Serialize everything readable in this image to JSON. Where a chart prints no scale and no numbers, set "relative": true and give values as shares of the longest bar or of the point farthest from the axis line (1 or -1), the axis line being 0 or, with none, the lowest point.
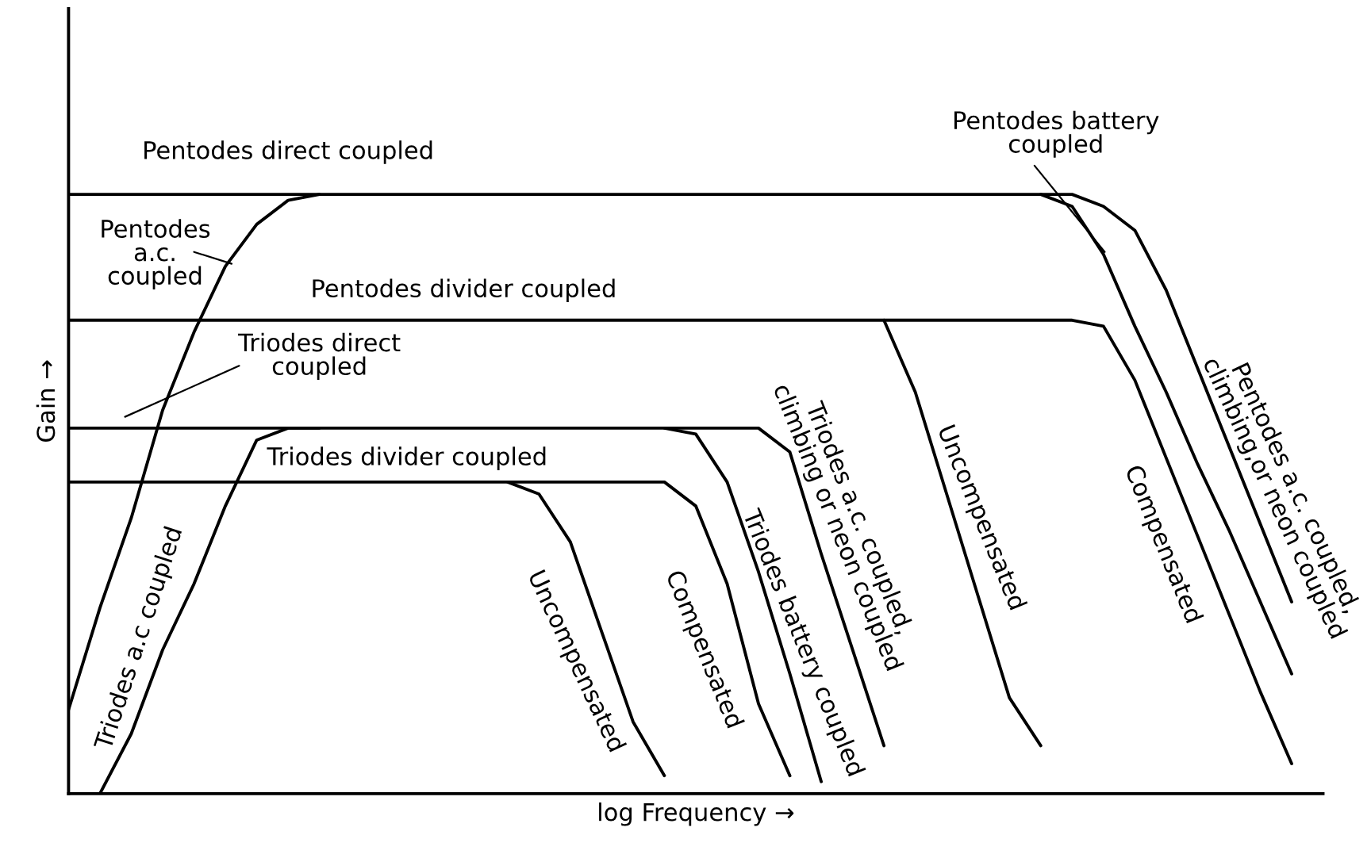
{
  "chart_data": {
    "type": "line",
    "relative": true,
    "xlabel": "log Frequency →",
    "ylabel": "Gain →",
    "marker": "none",
    "line_style": "solid",
    "categories": [
      null,
      null,
      null,
      null,
      null,
      null,
      null,
      null,
      null,
      null,
      null,
      null,
      null,
      null,
      null,
      null,
      null,
      null,
      null,
      null,
      null,
      null,
      null,
      null,
      null,
      null,
      null,
      null,
      null,
      null,
      null,
      null,
      null,
      null,
      null,
      null,
      null,
      null,
      null,
      null
    ],
    "series": [
      {
        "color": "#000000",
        "values": [
          1,
          1,
          1,
          1,
          1,
          1,
          1,
          1,
          1,
          1,
          1,
          1,
          1,
          1,
          1,
          1,
          1,
          1,
          1,
          1,
          1,
          1,
          1,
          1,
          1,
          1,
          1,
          1,
          1,
          1,
          1,
          1,
          0.98,
          0.9,
          0.78,
          0.67,
          0.55,
          0.44,
          0.32,
          0.2
        ]
      },
      {
        "color": "#000000",
        "values": [
          null,
          null,
          null,
          null,
          null,
          null,
          null,
          null,
          null,
          null,
          null,
          null,
          null,
          null,
          null,
          null,
          null,
          null,
          null,
          null,
          null,
          null,
          null,
          null,
          null,
          null,
          null,
          null,
          null,
          null,
          null,
          1,
          1,
          0.98,
          0.94,
          0.84,
          0.71,
          0.58,
          0.45,
          0.32
        ]
      },
      {
        "color": "#000000",
        "values": [
          0.14,
          0.31,
          0.46,
          0.64,
          0.77,
          0.88,
          0.95,
          0.99,
          1,
          null,
          null,
          null,
          null,
          null,
          null,
          null,
          null,
          null,
          null,
          null,
          null,
          null,
          null,
          null,
          null,
          null,
          null,
          null,
          null,
          null,
          null,
          null,
          null,
          null,
          null,
          null,
          null,
          null,
          null,
          null
        ]
      },
      {
        "color": "#000000",
        "values": [
          0.79,
          0.79,
          0.79,
          0.79,
          0.79,
          0.79,
          0.79,
          0.79,
          0.79,
          0.79,
          0.79,
          0.79,
          0.79,
          0.79,
          0.79,
          0.79,
          0.79,
          0.79,
          0.79,
          0.79,
          0.79,
          0.79,
          0.79,
          0.79,
          0.79,
          0.79,
          0.79,
          0.67,
          0.5,
          0.33,
          0.16,
          0.08,
          null,
          null,
          null,
          null,
          null,
          null,
          null,
          null
        ]
      },
      {
        "color": "#000000",
        "values": [
          null,
          null,
          null,
          null,
          null,
          null,
          null,
          null,
          null,
          null,
          null,
          null,
          null,
          null,
          null,
          null,
          null,
          null,
          null,
          null,
          null,
          null,
          null,
          null,
          null,
          null,
          0.79,
          0.79,
          0.79,
          0.79,
          0.79,
          0.79,
          0.79,
          0.78,
          0.69,
          0.56,
          0.43,
          0.3,
          0.17,
          0.05
        ]
      },
      {
        "color": "#000000",
        "values": [
          0.61,
          0.61,
          0.61,
          0.61,
          0.61,
          0.61,
          0.61,
          0.61,
          0.61,
          0.61,
          0.61,
          0.61,
          0.61,
          0.61,
          0.61,
          0.61,
          0.61,
          0.61,
          0.61,
          0.61,
          0.6,
          0.52,
          0.37,
          0.2,
          0.02,
          null,
          null,
          null,
          null,
          null,
          null,
          null,
          null,
          null,
          null,
          null,
          null,
          null,
          null,
          null
        ]
      },
      {
        "color": "#000000",
        "values": [
          null,
          null,
          null,
          null,
          null,
          null,
          null,
          null,
          null,
          null,
          null,
          null,
          null,
          null,
          null,
          null,
          null,
          null,
          null,
          0.61,
          0.61,
          0.61,
          0.61,
          0.57,
          0.4,
          0.24,
          0.08,
          null,
          null,
          null,
          null,
          null,
          null,
          null,
          null,
          null,
          null,
          null,
          null,
          null
        ]
      },
      {
        "color": "#000000",
        "values": [
          null,
          0,
          0.1,
          0.24,
          0.35,
          0.48,
          0.59,
          0.61,
          0.61,
          null,
          null,
          null,
          null,
          null,
          null,
          null,
          null,
          null,
          null,
          null,
          null,
          null,
          null,
          null,
          null,
          null,
          null,
          null,
          null,
          null,
          null,
          null,
          null,
          null,
          null,
          null,
          null,
          null,
          null,
          null
        ]
      },
      {
        "color": "#000000",
        "values": [
          0.52,
          0.52,
          0.52,
          0.52,
          0.52,
          0.52,
          0.52,
          0.52,
          0.52,
          0.52,
          0.52,
          0.52,
          0.52,
          0.52,
          0.52,
          0.5,
          0.42,
          0.27,
          0.12,
          0.03,
          null,
          null,
          null,
          null,
          null,
          null,
          null,
          null,
          null,
          null,
          null,
          null,
          null,
          null,
          null,
          null,
          null,
          null,
          null,
          null
        ]
      },
      {
        "color": "#000000",
        "values": [
          null,
          null,
          null,
          null,
          null,
          null,
          null,
          null,
          null,
          null,
          null,
          null,
          null,
          null,
          0.52,
          0.52,
          0.52,
          0.52,
          0.52,
          0.52,
          0.48,
          0.35,
          0.15,
          0.03,
          null,
          null,
          null,
          null,
          null,
          null,
          null,
          null,
          null,
          null,
          null,
          null,
          null,
          null,
          null,
          null
        ]
      }
    ],
    "annotations": [
      "Pentodes direct coupled",
      "Pentodes\na.c.\ncoupled",
      "Pentodes divider coupled",
      "Triodes direct\ncoupled",
      "Triodes divider coupled",
      "Triodes a.c coupled",
      "Uncompensated",
      "Compensated",
      "Triodes battery coupled",
      "Triodes a.c. coupled,\nclimbing or neon coupled",
      "Uncompensated",
      "Compensated",
      "Pentodes battery\ncoupled",
      "Pentodes a.c. coupled,\nclimbing,or neon coupled"
    ]
  }
}
